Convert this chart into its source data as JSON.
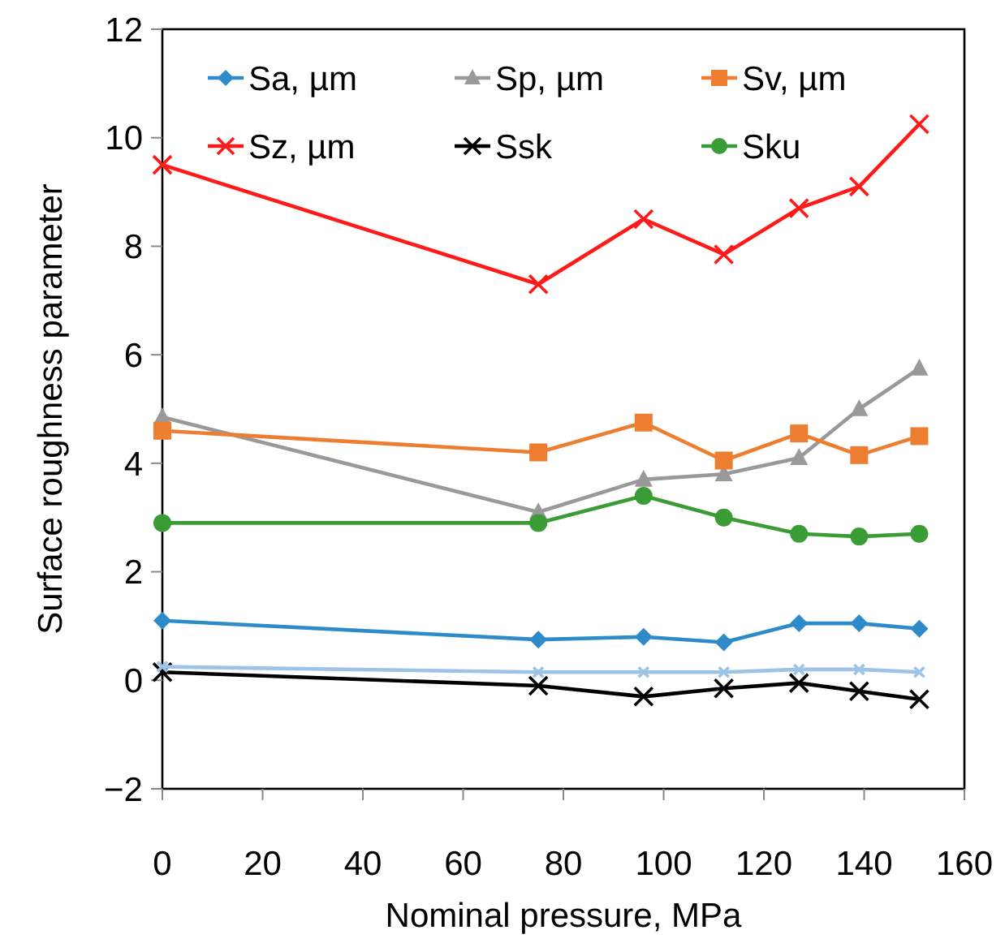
{
  "chart_data": {
    "type": "line",
    "xlabel": "Nominal pressure, MPa",
    "ylabel": "Surface roughness parameter",
    "x": [
      0,
      75,
      96,
      112,
      127,
      139,
      151
    ],
    "xlim": [
      0,
      160
    ],
    "xticks": [
      0,
      20,
      40,
      60,
      80,
      100,
      120,
      140,
      160
    ],
    "ylim": [
      -2,
      12
    ],
    "yticks": [
      -2,
      0,
      2,
      4,
      6,
      8,
      10,
      12
    ],
    "grid": false,
    "legend": "top",
    "line_style": "solid",
    "series": [
      {
        "name": "Sa, µm",
        "color": "#2e8bc9",
        "marker": "diamond",
        "values": [
          1.1,
          0.75,
          0.8,
          0.7,
          1.05,
          1.05,
          0.95
        ]
      },
      {
        "name": "Sp, µm",
        "color": "#999999",
        "marker": "triangle",
        "values": [
          4.85,
          3.1,
          3.7,
          3.8,
          4.1,
          5.0,
          5.75
        ]
      },
      {
        "name": "Sv, µm",
        "color": "#ed7d31",
        "marker": "square",
        "values": [
          4.6,
          4.2,
          4.75,
          4.05,
          4.55,
          4.15,
          4.5
        ]
      },
      {
        "name": "Sz, µm",
        "color": "#ff1a1a",
        "marker": "cross",
        "values": [
          9.5,
          7.3,
          8.5,
          7.85,
          8.7,
          9.1,
          10.25
        ]
      },
      {
        "name": "Ssk",
        "color": "#000000",
        "marker": "cross",
        "values": [
          0.15,
          -0.1,
          -0.3,
          -0.15,
          -0.05,
          -0.2,
          -0.35
        ]
      },
      {
        "name": "Sku",
        "color": "#3a9c35",
        "marker": "circle",
        "values": [
          2.9,
          2.9,
          3.4,
          3.0,
          2.7,
          2.65,
          2.7
        ]
      },
      {
        "color": "#9dc3e6",
        "marker": "cross",
        "values": [
          0.25,
          0.15,
          0.15,
          0.15,
          0.2,
          0.2,
          0.15
        ]
      }
    ]
  }
}
